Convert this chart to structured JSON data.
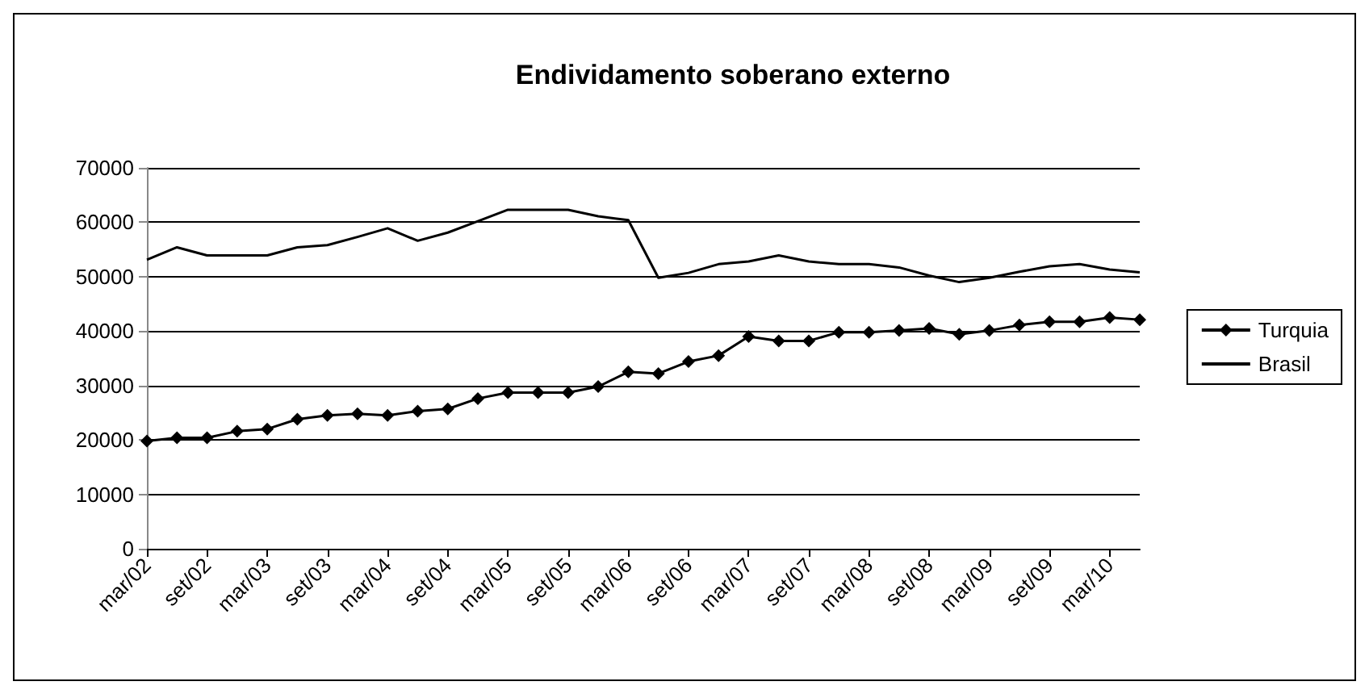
{
  "chart_data": {
    "type": "line",
    "title": "Endividamento soberano externo",
    "categories": [
      "mar/02",
      null,
      "set/02",
      null,
      "mar/03",
      null,
      "set/03",
      null,
      "mar/04",
      null,
      "set/04",
      null,
      "mar/05",
      null,
      "set/05",
      null,
      "mar/06",
      null,
      "set/06",
      null,
      "mar/07",
      null,
      "set/07",
      null,
      "mar/08",
      null,
      "set/08",
      null,
      "mar/09",
      null,
      "set/09",
      null,
      "mar/10",
      null
    ],
    "series": [
      {
        "name": "Turquia",
        "color": "#000000",
        "marker": "diamond",
        "values": [
          19800,
          20400,
          20400,
          21600,
          22000,
          23800,
          24500,
          24800,
          24500,
          25300,
          25700,
          27600,
          28700,
          28700,
          28700,
          29800,
          32500,
          32200,
          34400,
          35500,
          39000,
          38200,
          38200,
          39800,
          39800,
          40100,
          40500,
          39400,
          40100,
          41100,
          41700,
          41700,
          42500,
          42100
        ]
      },
      {
        "name": "Brasil",
        "color": "#000000",
        "marker": "none",
        "values": [
          53100,
          55400,
          53900,
          53900,
          53900,
          55400,
          55800,
          57300,
          58900,
          56600,
          58100,
          60200,
          62300,
          62300,
          62300,
          61100,
          60400,
          49800,
          50700,
          52300,
          52800,
          53900,
          52800,
          52300,
          52300,
          51700,
          50200,
          49000,
          49800,
          50900,
          51900,
          52300,
          51300,
          50800
        ]
      }
    ],
    "ylim": [
      0,
      70000
    ],
    "yticks": [
      0,
      10000,
      20000,
      30000,
      40000,
      50000,
      60000,
      70000
    ],
    "grid": "y",
    "legend": "right"
  }
}
